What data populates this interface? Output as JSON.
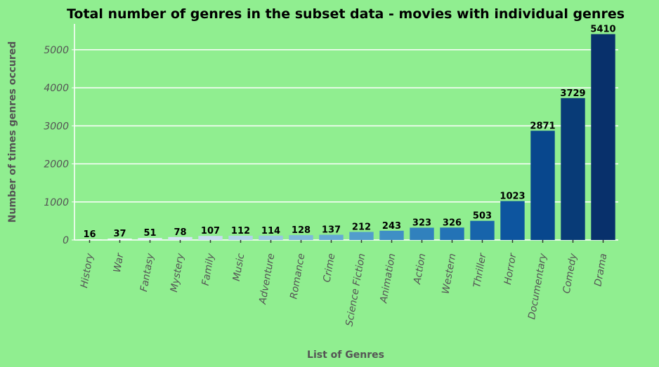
{
  "chart_data": {
    "type": "bar",
    "title": "Total number of genres in the subset data - movies with individual genres",
    "xlabel": "List of Genres",
    "ylabel": "Number of times genres occured",
    "categories": [
      "History",
      "War",
      "Fantasy",
      "Mystery",
      "Family",
      "Music",
      "Adventure",
      "Romance",
      "Crime",
      "Science Fiction",
      "Animation",
      "Action",
      "Western",
      "Thriller",
      "Horror",
      "Documentary",
      "Comedy",
      "Drama"
    ],
    "values": [
      16,
      37,
      51,
      78,
      107,
      112,
      114,
      128,
      137,
      212,
      243,
      323,
      326,
      503,
      1023,
      2871,
      3729,
      5410
    ],
    "data_labels": [
      "16",
      "37",
      "51",
      "78",
      "107",
      "112",
      "114",
      "128",
      "137",
      "212",
      "243",
      "323",
      "326",
      "503",
      "1023",
      "2871",
      "3729",
      "5410"
    ],
    "yticks": [
      0,
      1000,
      2000,
      3000,
      4000,
      5000
    ],
    "ytick_labels": [
      "0",
      "1000",
      "2000",
      "3000",
      "4000",
      "5000"
    ],
    "ylim": [
      0,
      5680
    ],
    "grid": "horizontal",
    "colors": {
      "background": "#90ee90",
      "palette": [
        "#f7fbff",
        "#eef5fc",
        "#e0ecf8",
        "#d3e4f3",
        "#c6dbef",
        "#b0d2e8",
        "#97c6df",
        "#7eb8da",
        "#65aad4",
        "#529dcc",
        "#3f8fc5",
        "#3181bd",
        "#2373b6",
        "#1764ab",
        "#0d559f",
        "#08478d",
        "#083b77",
        "#08306b"
      ]
    }
  }
}
